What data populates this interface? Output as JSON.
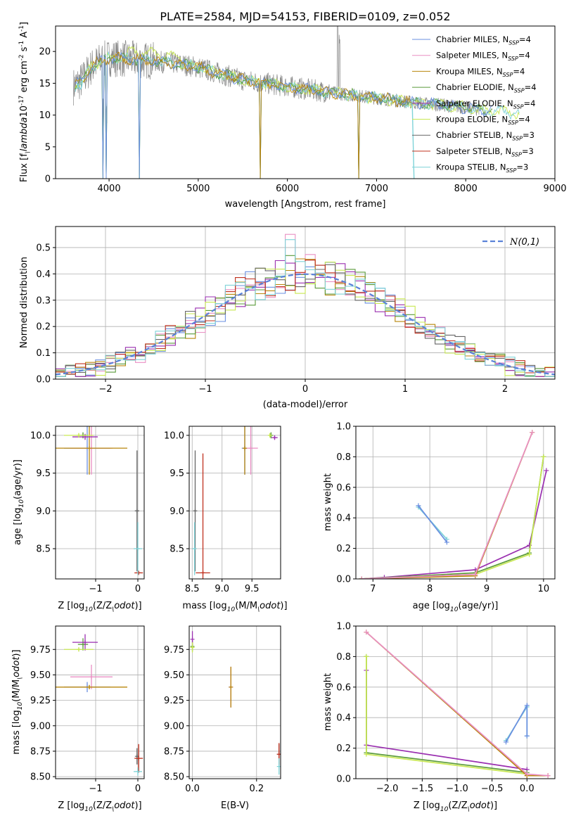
{
  "colors": [
    "#6a8fe0",
    "#e98fc4",
    "#b8860b",
    "#5a9a3a",
    "#9a2fb0",
    "#c8e852",
    "#666666",
    "#c0301e",
    "#7fd3d8"
  ],
  "series_names": [
    "Chabrier MILES, N$_{SSP}$=4",
    "Salpeter MILES, N$_{SSP}$=4",
    "Kroupa MILES, N$_{SSP}$=4",
    "Chabrier ELODIE, N$_{SSP}$=4",
    "Salpeter ELODIE, N$_{SSP}$=4",
    "Kroupa ELODIE, N$_{SSP}$=4",
    "Chabrier STELIB, N$_{SSP}$=3",
    "Salpeter STELIB, N$_{SSP}$=3",
    "Kroupa STELIB, N$_{SSP}$=3"
  ],
  "chart_data": [
    {
      "id": "spectrum",
      "type": "line",
      "title": "PLATE=2584, MJD=54153, FIBERID=0109, z=0.052",
      "xlabel": "wavelength [Angstrom, rest frame]",
      "ylabel": "Flux [f$_\\lambda$10$^{-17}$ erg cm$^{-2}$ s$^{-1}$ A$^{-1}$]",
      "xlim": [
        3400,
        9000
      ],
      "ylim": [
        0,
        24
      ],
      "xticks": [
        "4000",
        "5000",
        "6000",
        "7000",
        "8000",
        "9000"
      ],
      "yticks": [
        "0",
        "5",
        "10",
        "15",
        "20"
      ],
      "legend": "upper right",
      "continuum": {
        "x": [
          3600,
          3700,
          3800,
          3900,
          4000,
          4200,
          4500,
          4800,
          5000,
          5500,
          6000,
          6500,
          7000,
          7400,
          7800,
          8200,
          8600
        ],
        "y": [
          14.5,
          15.5,
          17.5,
          18.5,
          19,
          18.8,
          18.5,
          18,
          17.5,
          15.5,
          14.5,
          13.5,
          12.7,
          12,
          11.5,
          10.8,
          10.2
        ]
      },
      "absorption_lines": [
        3934,
        3969,
        4340,
        5700,
        6800
      ],
      "emission_lines": [
        6563,
        6583
      ]
    },
    {
      "id": "residuals",
      "type": "histogram",
      "xlabel": "(data-model)/error",
      "ylabel": "Normed distribution",
      "xlim": [
        -2.5,
        2.5
      ],
      "ylim": [
        0,
        0.58
      ],
      "xticks": [
        "−2",
        "−1",
        "0",
        "1",
        "2"
      ],
      "yticks": [
        "0.0",
        "0.1",
        "0.2",
        "0.3",
        "0.4",
        "0.5"
      ],
      "grid": true,
      "legend": "upper right",
      "reference_label": "$\\mathcal{N}(0,1)$",
      "bin_width": 0.1
    },
    {
      "id": "age-vs-Z",
      "type": "scatter",
      "xlabel": "Z [log$_{10}$(Z/Z$_\\odot$)]",
      "ylabel": "age  [log$_{10}$(age/yr)]",
      "xlim": [
        -1.95,
        0.15
      ],
      "ylim": [
        8.1,
        10.12
      ],
      "xticks": [
        "−1",
        "0"
      ],
      "yticks": [
        "8.5",
        "9.0",
        "9.5",
        "10.0"
      ],
      "grid": true,
      "points": [
        {
          "s": 0,
          "x": -1.2,
          "y": 9.83,
          "xe": 0.55,
          "ye": 0.35
        },
        {
          "s": 1,
          "x": -1.1,
          "y": 9.83,
          "xe": 0.5,
          "ye": 0.35
        },
        {
          "s": 2,
          "x": -1.15,
          "y": 9.83,
          "xe": 0.9,
          "ye": 0.35
        },
        {
          "s": 3,
          "x": -1.3,
          "y": 10.0,
          "xe": 0.12,
          "ye": 0.04
        },
        {
          "s": 4,
          "x": -1.25,
          "y": 9.98,
          "xe": 0.3,
          "ye": 0.04
        },
        {
          "s": 5,
          "x": -1.4,
          "y": 10.0,
          "xe": 0.35,
          "ye": 0.03
        },
        {
          "s": 6,
          "x": -0.02,
          "y": 9.0,
          "xe": 0.05,
          "ye": 0.8
        },
        {
          "s": 7,
          "x": 0.02,
          "y": 8.18,
          "xe": 0.1,
          "ye": 0.01
        },
        {
          "s": 8,
          "x": 0.0,
          "y": 8.5,
          "xe": 0.1,
          "ye": 0.35
        }
      ]
    },
    {
      "id": "age-vs-mass",
      "type": "scatter",
      "xlabel": "mass [log$_{10}$(M/M$_\\odot$)]",
      "ylabel": "",
      "xlim": [
        8.45,
        9.98
      ],
      "ylim": [
        8.1,
        10.12
      ],
      "xticks": [
        "8.5",
        "9.0",
        "9.5"
      ],
      "yticks": [
        "8.5",
        "9.0",
        "9.5",
        "10.0"
      ],
      "grid": true,
      "points": [
        {
          "s": 0,
          "x": 9.38,
          "y": 9.83,
          "xe": 0.05,
          "ye": 0.35
        },
        {
          "s": 1,
          "x": 9.48,
          "y": 9.83,
          "xe": 0.12,
          "ye": 0.35
        },
        {
          "s": 2,
          "x": 9.38,
          "y": 9.83,
          "xe": 0.02,
          "ye": 0.35
        },
        {
          "s": 3,
          "x": 9.82,
          "y": 10.0,
          "xe": 0.02,
          "ye": 0.04
        },
        {
          "s": 4,
          "x": 9.88,
          "y": 9.97,
          "xe": 0.05,
          "ye": 0.03
        },
        {
          "s": 5,
          "x": 9.8,
          "y": 10.0,
          "xe": 0.02,
          "ye": 0.03
        },
        {
          "s": 6,
          "x": 8.55,
          "y": 9.0,
          "xe": 0.02,
          "ye": 0.8
        },
        {
          "s": 7,
          "x": 8.68,
          "y": 8.18,
          "xe": 0.12,
          "ye": 1.58
        },
        {
          "s": 8,
          "x": 8.54,
          "y": 8.5,
          "xe": 0.03,
          "ye": 0.35
        }
      ]
    },
    {
      "id": "weight-vs-age",
      "type": "line",
      "xlabel": "age  [log$_{10}$(age/yr)]",
      "ylabel": "mass weight",
      "xlim": [
        6.7,
        10.2
      ],
      "ylim": [
        0,
        1.0
      ],
      "xticks": [
        "7",
        "8",
        "9",
        "10"
      ],
      "yticks": [
        "0.0",
        "0.2",
        "0.4",
        "0.6",
        "0.8",
        "1.0"
      ],
      "grid": true,
      "series": [
        {
          "s": 4,
          "x": [
            6.8,
            7.2,
            8.8,
            9.75,
            10.05
          ],
          "y": [
            0.0,
            0.01,
            0.06,
            0.22,
            0.71
          ]
        },
        {
          "s": 3,
          "x": [
            6.8,
            8.8,
            9.75,
            10.0
          ],
          "y": [
            0.0,
            0.04,
            0.17,
            0.8
          ]
        },
        {
          "s": 5,
          "x": [
            6.8,
            8.8,
            9.75,
            10.0
          ],
          "y": [
            0.0,
            0.03,
            0.16,
            0.8
          ]
        },
        {
          "s": 2,
          "x": [
            6.8,
            8.8,
            9.8
          ],
          "y": [
            0.0,
            0.02,
            0.96
          ]
        },
        {
          "s": 1,
          "x": [
            6.8,
            8.8,
            9.8
          ],
          "y": [
            0.0,
            0.03,
            0.96
          ]
        },
        {
          "s": 8,
          "x": [
            7.8,
            8.3
          ],
          "y": [
            0.47,
            0.26
          ]
        },
        {
          "s": 0,
          "x": [
            7.8,
            8.3
          ],
          "y": [
            0.48,
            0.24
          ]
        }
      ]
    },
    {
      "id": "mass-vs-Z",
      "type": "scatter",
      "xlabel": "Z [log$_{10}$(Z/Z$_\\odot$)]",
      "ylabel": "mass [log$_{10}$(M/M$_\\odot$)]",
      "xlim": [
        -1.95,
        0.15
      ],
      "ylim": [
        8.48,
        9.98
      ],
      "xticks": [
        "−1",
        "0"
      ],
      "yticks": [
        "8.50",
        "8.75",
        "9.00",
        "9.25",
        "9.50",
        "9.75"
      ],
      "grid": true,
      "points": [
        {
          "s": 0,
          "x": -1.2,
          "y": 9.38,
          "xe": 0.55,
          "ye": 0.05
        },
        {
          "s": 1,
          "x": -1.1,
          "y": 9.48,
          "xe": 0.5,
          "ye": 0.12
        },
        {
          "s": 2,
          "x": -1.15,
          "y": 9.38,
          "xe": 0.9,
          "ye": 0.02
        },
        {
          "s": 3,
          "x": -1.3,
          "y": 9.8,
          "xe": 0.12,
          "ye": 0.06
        },
        {
          "s": 4,
          "x": -1.25,
          "y": 9.82,
          "xe": 0.3,
          "ye": 0.08
        },
        {
          "s": 5,
          "x": -1.4,
          "y": 9.75,
          "xe": 0.35,
          "ye": 0.02
        },
        {
          "s": 6,
          "x": -0.02,
          "y": 8.7,
          "xe": 0.03,
          "ye": 0.08
        },
        {
          "s": 7,
          "x": 0.02,
          "y": 8.68,
          "xe": 0.1,
          "ye": 0.14
        },
        {
          "s": 8,
          "x": 0.0,
          "y": 8.55,
          "xe": 0.1,
          "ye": 0.04
        }
      ]
    },
    {
      "id": "mass-vs-ebv",
      "type": "scatter",
      "xlabel": "E(B-V)",
      "ylabel": "",
      "xlim": [
        -0.01,
        0.275
      ],
      "ylim": [
        8.48,
        9.98
      ],
      "xticks": [
        "0.0",
        "0.2"
      ],
      "yticks": [
        "8.50",
        "8.75",
        "9.00",
        "9.25",
        "9.50",
        "9.75"
      ],
      "grid": true,
      "points": [
        {
          "s": 0,
          "x": 0.12,
          "y": 9.38,
          "xe": 0,
          "ye": 0.2
        },
        {
          "s": 1,
          "x": 0.12,
          "y": 9.38,
          "xe": 0,
          "ye": 0.2
        },
        {
          "s": 2,
          "x": 0.12,
          "y": 9.38,
          "xe": 0,
          "ye": 0.2
        },
        {
          "s": 3,
          "x": 0.0,
          "y": 9.78,
          "xe": 0,
          "ye": 0.05
        },
        {
          "s": 4,
          "x": 0.0,
          "y": 9.85,
          "xe": 0,
          "ye": 0.08
        },
        {
          "s": 5,
          "x": 0.0,
          "y": 9.77,
          "xe": 0,
          "ye": 0.05
        },
        {
          "s": 6,
          "x": 0.27,
          "y": 8.72,
          "xe": 0,
          "ye": 0.1
        },
        {
          "s": 7,
          "x": 0.27,
          "y": 8.72,
          "xe": 0,
          "ye": 0.11
        },
        {
          "s": 8,
          "x": 0.27,
          "y": 8.6,
          "xe": 0,
          "ye": 0.08
        }
      ]
    },
    {
      "id": "weight-vs-Z",
      "type": "line",
      "xlabel": "Z [log$_{10}$(Z/Z$_\\odot$)]",
      "ylabel": "mass weight",
      "xlim": [
        -2.45,
        0.4
      ],
      "ylim": [
        0,
        1.0
      ],
      "xticks": [
        "−2.0",
        "−1.5",
        "−1.0",
        "−0.5",
        "0.0"
      ],
      "yticks": [
        "0.0",
        "0.2",
        "0.4",
        "0.6",
        "0.8",
        "1.0"
      ],
      "grid": true,
      "series": [
        {
          "s": 4,
          "x": [
            -2.3,
            -2.3,
            0.0
          ],
          "y": [
            0.71,
            0.22,
            0.06
          ]
        },
        {
          "s": 3,
          "x": [
            -2.3,
            -2.3,
            0.0
          ],
          "y": [
            0.8,
            0.17,
            0.04
          ]
        },
        {
          "s": 5,
          "x": [
            -2.3,
            -2.3,
            0.0
          ],
          "y": [
            0.8,
            0.16,
            0.03
          ]
        },
        {
          "s": 2,
          "x": [
            -2.3,
            0.0,
            0.0,
            0.3
          ],
          "y": [
            0.96,
            0.02,
            0.02,
            0.02
          ]
        },
        {
          "s": 1,
          "x": [
            -2.3,
            0.0,
            0.3
          ],
          "y": [
            0.96,
            0.03,
            0.02
          ]
        },
        {
          "s": 8,
          "x": [
            -0.3,
            0.0,
            0.0
          ],
          "y": [
            0.25,
            0.47,
            0.28
          ]
        },
        {
          "s": 0,
          "x": [
            -0.3,
            0.0,
            0.0
          ],
          "y": [
            0.24,
            0.48,
            0.28
          ]
        }
      ]
    }
  ]
}
